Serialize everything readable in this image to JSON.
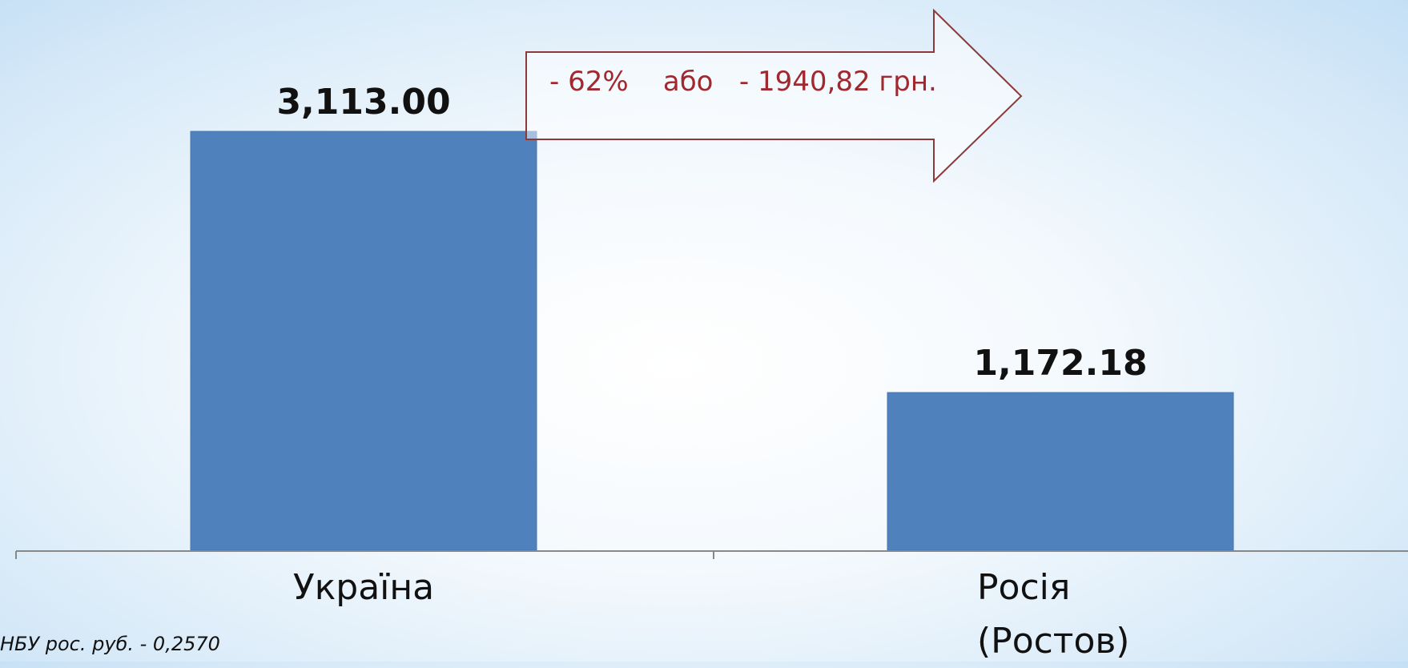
{
  "chart_data": {
    "type": "bar",
    "categories": [
      "Україна",
      "Росія (Ростов)"
    ],
    "values": [
      3113.0,
      1172.18
    ],
    "value_labels": [
      "3,113.00",
      "1,172.18"
    ],
    "color": "#4f81bd",
    "annotation": "- 62%    або   - 1940,82 грн.",
    "footnote": "НБУ рос. руб. - 0,2570"
  }
}
